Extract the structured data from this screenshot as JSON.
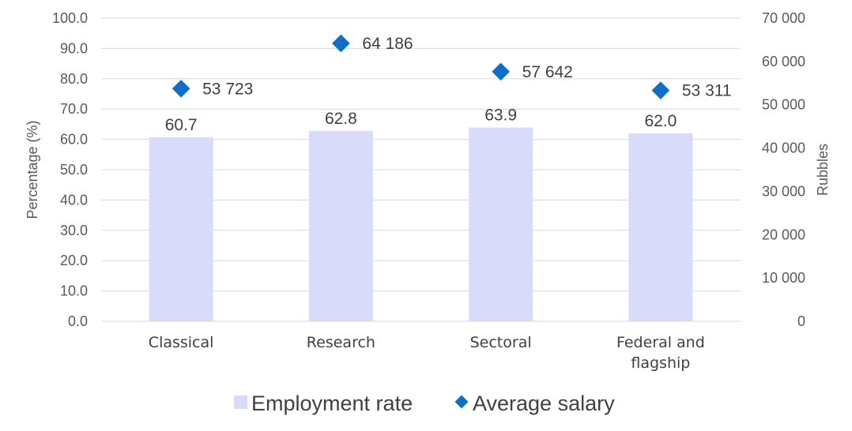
{
  "chart_data": {
    "type": "bar+scatter",
    "categories": [
      "Classical",
      "Research",
      "Sectoral",
      "Federal and\nflagship"
    ],
    "series": [
      {
        "name": "Employment rate",
        "type": "bar",
        "axis": "left",
        "values": [
          60.7,
          62.8,
          63.9,
          62.0
        ],
        "labels": [
          "60.7",
          "62.8",
          "63.9",
          "62.0"
        ],
        "color": "#d9dbfa"
      },
      {
        "name": "Average salary",
        "type": "scatter",
        "axis": "right",
        "values": [
          53723,
          64186,
          57642,
          53311
        ],
        "labels": [
          "53 723",
          "64 186",
          "57 642",
          "53 311"
        ],
        "color": "#0f6fc6"
      }
    ],
    "y_left": {
      "label": "Percentage (%)",
      "range": [
        0,
        100
      ],
      "ticks": [
        "0.0",
        "10.0",
        "20.0",
        "30.0",
        "40.0",
        "50.0",
        "60.0",
        "70.0",
        "80.0",
        "90.0",
        "100.0"
      ]
    },
    "y_right": {
      "label": "Rubbles",
      "range": [
        0,
        70000
      ],
      "ticks": [
        "0",
        "10 000",
        "20 000",
        "30 000",
        "40 000",
        "50 000",
        "60 000",
        "70 000"
      ]
    },
    "legend": {
      "position": "bottom",
      "items": [
        "Employment rate",
        "Average salary"
      ]
    },
    "gridlines": true
  }
}
